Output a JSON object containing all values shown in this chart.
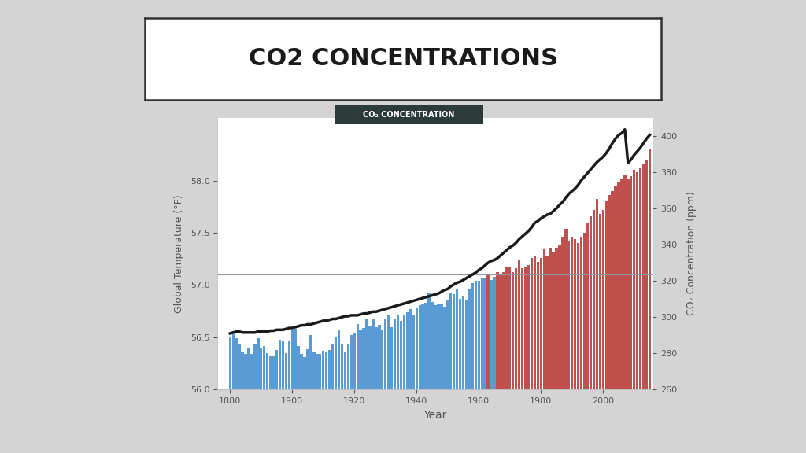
{
  "title": "CO2 CONCENTRATIONS",
  "chart_legend": "CO₂ CONCENTRATION",
  "ylabel_left": "Global Temperature (°F)",
  "ylabel_right": "CO₂ Concentration (ppm)",
  "xlabel": "Year",
  "bg_outer": "#d4d4d4",
  "bg_title_box": "#ffffff",
  "bg_chart": "#ffffff",
  "threshold_temp": 57.1,
  "ylim_left": [
    56.0,
    58.6
  ],
  "ylim_right": [
    260,
    410
  ],
  "xlim": [
    1876,
    2016
  ],
  "bar_color_blue": "#5b9bd5",
  "bar_color_red": "#c0504d",
  "line_color": "#1a1a1a",
  "legend_bg": "#2d3a3a",
  "legend_text_color": "#ffffff",
  "xticks": [
    1880,
    1900,
    1920,
    1940,
    1960,
    1980,
    2000
  ],
  "yticks_left": [
    56.0,
    56.5,
    57.0,
    57.5,
    58.0
  ],
  "yticks_right": [
    260,
    280,
    300,
    320,
    340,
    360,
    380,
    400
  ],
  "years": [
    1880,
    1881,
    1882,
    1883,
    1884,
    1885,
    1886,
    1887,
    1888,
    1889,
    1890,
    1891,
    1892,
    1893,
    1894,
    1895,
    1896,
    1897,
    1898,
    1899,
    1900,
    1901,
    1902,
    1903,
    1904,
    1905,
    1906,
    1907,
    1908,
    1909,
    1910,
    1911,
    1912,
    1913,
    1914,
    1915,
    1916,
    1917,
    1918,
    1919,
    1920,
    1921,
    1922,
    1923,
    1924,
    1925,
    1926,
    1927,
    1928,
    1929,
    1930,
    1931,
    1932,
    1933,
    1934,
    1935,
    1936,
    1937,
    1938,
    1939,
    1940,
    1941,
    1942,
    1943,
    1944,
    1945,
    1946,
    1947,
    1948,
    1949,
    1950,
    1951,
    1952,
    1953,
    1954,
    1955,
    1956,
    1957,
    1958,
    1959,
    1960,
    1961,
    1962,
    1963,
    1964,
    1965,
    1966,
    1967,
    1968,
    1969,
    1970,
    1971,
    1972,
    1973,
    1974,
    1975,
    1976,
    1977,
    1978,
    1979,
    1980,
    1981,
    1982,
    1983,
    1984,
    1985,
    1986,
    1987,
    1988,
    1989,
    1990,
    1991,
    1992,
    1993,
    1994,
    1995,
    1996,
    1997,
    1998,
    1999,
    2000,
    2001,
    2002,
    2003,
    2004,
    2005,
    2006,
    2007,
    2008,
    2009,
    2010,
    2011,
    2012,
    2013,
    2014,
    2015
  ],
  "temp": [
    56.5,
    56.56,
    56.49,
    56.43,
    56.36,
    56.34,
    56.4,
    56.34,
    56.44,
    56.49,
    56.4,
    56.42,
    56.35,
    56.32,
    56.32,
    56.38,
    56.48,
    56.47,
    56.35,
    56.46,
    56.57,
    56.58,
    56.42,
    56.34,
    56.31,
    56.39,
    56.52,
    56.36,
    56.34,
    56.34,
    56.37,
    56.36,
    56.38,
    56.44,
    56.5,
    56.57,
    56.44,
    56.36,
    56.43,
    56.52,
    56.54,
    56.63,
    56.57,
    56.59,
    56.68,
    56.61,
    56.68,
    56.6,
    56.62,
    56.57,
    56.67,
    56.72,
    56.6,
    56.67,
    56.72,
    56.66,
    56.71,
    56.74,
    56.77,
    56.72,
    56.78,
    56.81,
    56.82,
    56.83,
    56.92,
    56.84,
    56.81,
    56.82,
    56.82,
    56.79,
    56.85,
    56.92,
    56.91,
    56.96,
    56.87,
    56.89,
    56.86,
    56.96,
    57.02,
    57.04,
    57.04,
    57.06,
    57.07,
    57.11,
    57.05,
    57.08,
    57.12,
    57.1,
    57.12,
    57.18,
    57.18,
    57.12,
    57.16,
    57.24,
    57.16,
    57.18,
    57.19,
    57.26,
    57.28,
    57.22,
    57.26,
    57.34,
    57.28,
    57.36,
    57.32,
    57.36,
    57.38,
    57.46,
    57.54,
    57.42,
    57.46,
    57.44,
    57.4,
    57.46,
    57.5,
    57.6,
    57.66,
    57.72,
    57.82,
    57.68,
    57.72,
    57.8,
    57.86,
    57.9,
    57.94,
    57.98,
    58.02,
    58.06,
    58.02,
    58.04,
    58.1,
    58.08,
    58.12,
    58.16,
    58.2,
    58.3
  ],
  "co2": [
    291.0,
    291.5,
    292.0,
    292.0,
    291.5,
    291.5,
    291.5,
    291.5,
    291.5,
    292.0,
    292.0,
    292.0,
    292.0,
    292.5,
    292.5,
    293.0,
    293.0,
    293.0,
    293.5,
    294.0,
    294.0,
    294.5,
    295.0,
    295.5,
    295.5,
    296.0,
    296.0,
    296.5,
    297.0,
    297.5,
    298.0,
    298.0,
    298.5,
    299.0,
    299.0,
    299.5,
    300.0,
    300.5,
    300.5,
    301.0,
    301.0,
    301.0,
    301.5,
    302.0,
    302.0,
    302.5,
    303.0,
    303.0,
    303.5,
    304.0,
    304.5,
    305.0,
    305.5,
    306.0,
    306.5,
    307.0,
    307.5,
    308.0,
    308.5,
    309.0,
    309.5,
    310.0,
    310.5,
    311.0,
    311.5,
    312.0,
    312.5,
    313.0,
    314.0,
    315.0,
    315.5,
    317.0,
    318.0,
    319.0,
    319.5,
    320.5,
    321.5,
    322.5,
    323.5,
    324.5,
    326.0,
    327.0,
    328.5,
    330.0,
    331.0,
    331.5,
    332.5,
    334.0,
    335.5,
    337.0,
    338.5,
    339.5,
    341.0,
    343.0,
    344.5,
    346.0,
    347.5,
    349.5,
    352.0,
    353.0,
    354.5,
    355.5,
    356.5,
    357.0,
    358.5,
    360.0,
    362.0,
    363.5,
    366.0,
    368.0,
    369.5,
    371.0,
    373.0,
    375.5,
    377.5,
    379.5,
    381.5,
    383.5,
    385.5,
    387.0,
    388.5,
    390.5,
    393.0,
    396.0,
    398.5,
    400.5,
    401.5,
    403.5,
    385.0,
    387.0,
    389.5,
    391.5,
    393.5,
    396.0,
    398.5,
    400.5
  ]
}
